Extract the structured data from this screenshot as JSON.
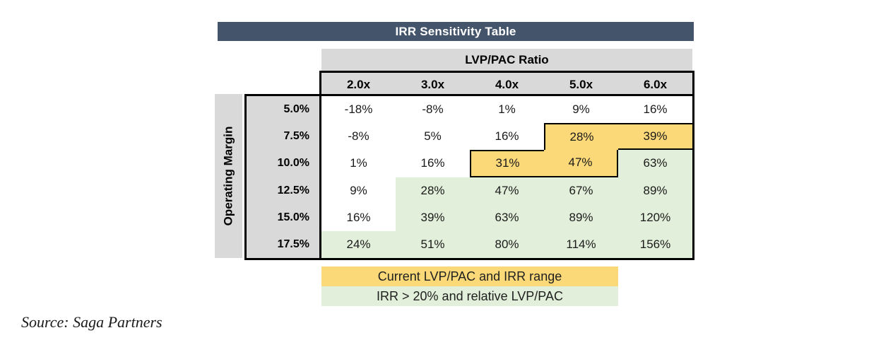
{
  "title": "IRR Sensitivity Table",
  "source": "Source: Saga Partners",
  "colors": {
    "header_bar": "#44546A",
    "axis_gray": "#D9D9D9",
    "highlight_yellow": "#FBD878",
    "highlight_green": "#E2EFDA",
    "border_black": "#000000"
  },
  "chart_data": {
    "type": "heatmap",
    "title": "IRR Sensitivity Table",
    "x_label": "LVP/PAC Ratio",
    "x_ticks": [
      "2.0x",
      "3.0x",
      "4.0x",
      "5.0x",
      "6.0x"
    ],
    "y_label": "Operating Margin",
    "y_ticks": [
      "5.0%",
      "7.5%",
      "10.0%",
      "12.5%",
      "15.0%",
      "17.5%"
    ],
    "values": [
      [
        "-18%",
        "-8%",
        "1%",
        "9%",
        "16%"
      ],
      [
        "-8%",
        "5%",
        "16%",
        "28%",
        "39%"
      ],
      [
        "1%",
        "16%",
        "31%",
        "47%",
        "63%"
      ],
      [
        "9%",
        "28%",
        "47%",
        "67%",
        "89%"
      ],
      [
        "16%",
        "39%",
        "63%",
        "89%",
        "120%"
      ],
      [
        "24%",
        "51%",
        "80%",
        "114%",
        "156%"
      ]
    ],
    "fills": [
      [
        "w",
        "w",
        "w",
        "w",
        "w"
      ],
      [
        "w",
        "w",
        "w",
        "y",
        "y"
      ],
      [
        "w",
        "w",
        "y",
        "y",
        "g"
      ],
      [
        "w",
        "g",
        "g",
        "g",
        "g"
      ],
      [
        "w",
        "g",
        "g",
        "g",
        "g"
      ],
      [
        "g",
        "g",
        "g",
        "g",
        "g"
      ]
    ],
    "outline": [
      [
        "",
        "",
        "",
        "",
        ""
      ],
      [
        "",
        "",
        "",
        "tl",
        "tb"
      ],
      [
        "",
        "",
        "tlb",
        "br",
        ""
      ],
      [
        "",
        "",
        "",
        "",
        ""
      ],
      [
        "",
        "",
        "",
        "",
        ""
      ],
      [
        "",
        "",
        "",
        "",
        ""
      ]
    ],
    "legend": [
      {
        "label": "Current LVP/PAC and IRR range",
        "swatch": "yellow"
      },
      {
        "label": "IRR > 20% and relative LVP/PAC",
        "swatch": "green"
      }
    ]
  }
}
